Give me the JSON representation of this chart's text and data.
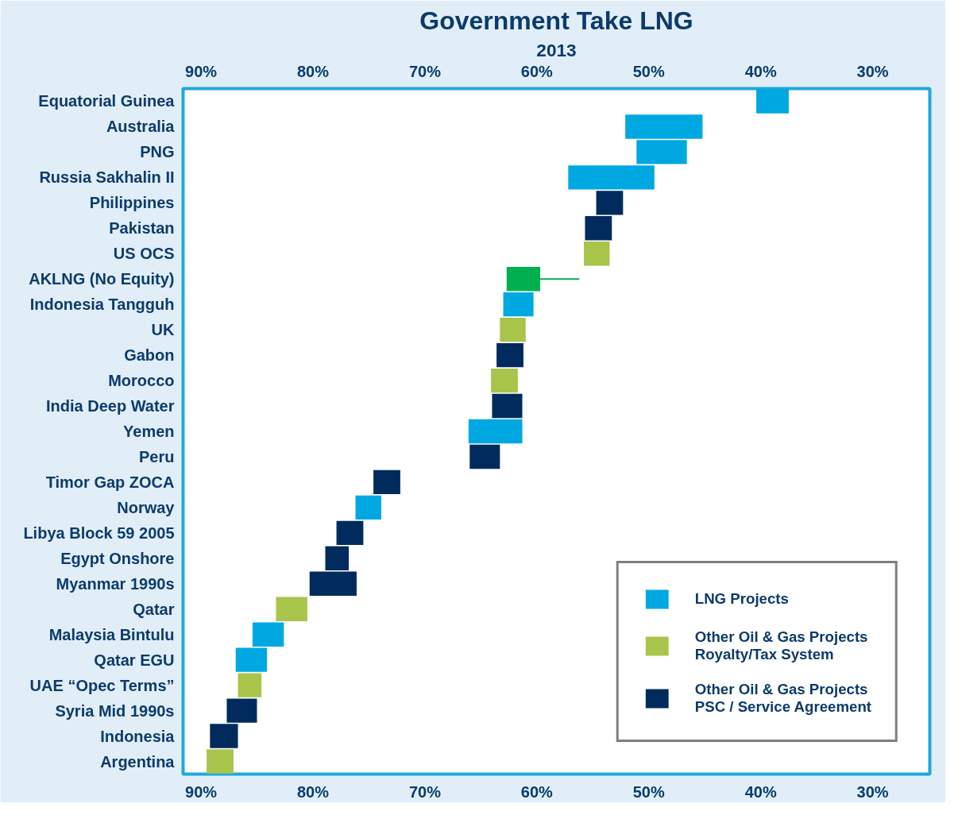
{
  "chart_data": {
    "type": "bar",
    "orientation": "horizontal",
    "title": "Government Take LNG",
    "subtitle": "2013",
    "categories": [
      "Equatorial Guinea",
      "Australia",
      "PNG",
      "Russia Sakhalin II",
      "Philippines",
      "Pakistan",
      "US OCS",
      "AKLNG (No Equity)",
      "Indonesia Tangguh",
      "UK",
      "Gabon",
      "Morocco",
      "India Deep Water",
      "Yemen",
      "Peru",
      "Timor Gap ZOCA",
      "Norway",
      "Libya Block 59 2005",
      "Egypt Onshore",
      "Myanmar 1990s",
      "Qatar",
      "Malaysia Bintulu",
      "Qatar EGU",
      "UAE “Opec Terms”",
      "Syria Mid 1990s",
      "Indonesia",
      "Argentina"
    ],
    "xlim": [
      91.6,
      24.9
    ],
    "xticks": [
      {
        "value": 90,
        "label": "90%"
      },
      {
        "value": 80,
        "label": "80%"
      },
      {
        "value": 70,
        "label": "70%"
      },
      {
        "value": 60,
        "label": "60%"
      },
      {
        "value": 50,
        "label": "50%"
      },
      {
        "value": 40,
        "label": "40%"
      },
      {
        "value": 30,
        "label": "30%"
      }
    ],
    "x2lim": [
      91.6,
      24.9
    ],
    "x2ticks": [
      {
        "value": 90,
        "label": "90%"
      },
      {
        "value": 80,
        "label": "80%"
      },
      {
        "value": 70,
        "label": "70%"
      },
      {
        "value": 60,
        "label": "60%"
      },
      {
        "value": 50,
        "label": "50%"
      },
      {
        "value": 40,
        "label": "40%"
      },
      {
        "value": 30,
        "label": "30%"
      }
    ],
    "legend": "bottom right",
    "grid": false,
    "series": [
      {
        "name": "LNG Projects",
        "color": "#00a8e1",
        "base": [
          37.5,
          45.2,
          46.6,
          49.5,
          null,
          null,
          null,
          null,
          60.3,
          null,
          null,
          null,
          null,
          61.3,
          null,
          null,
          73.9,
          null,
          null,
          null,
          null,
          82.6,
          84.1,
          null,
          null,
          null,
          null
        ],
        "values": [
          2.9,
          6.9,
          4.5,
          7.7,
          null,
          null,
          null,
          null,
          2.7,
          null,
          null,
          null,
          null,
          4.8,
          null,
          null,
          2.3,
          null,
          null,
          null,
          null,
          2.8,
          2.8,
          null,
          null,
          null,
          null
        ]
      },
      {
        "name": "Other Oil & Gas Projects\nRoyalty/Tax System",
        "color": "#a9c44a",
        "base": [
          null,
          null,
          null,
          null,
          null,
          null,
          53.5,
          null,
          null,
          61.0,
          null,
          61.7,
          null,
          null,
          null,
          null,
          null,
          null,
          null,
          null,
          80.5,
          null,
          null,
          84.6,
          null,
          null,
          87.1
        ],
        "values": [
          null,
          null,
          null,
          null,
          null,
          null,
          2.3,
          null,
          null,
          2.3,
          null,
          2.4,
          null,
          null,
          null,
          null,
          null,
          null,
          null,
          null,
          2.8,
          null,
          null,
          2.1,
          null,
          null,
          2.4
        ]
      },
      {
        "name": "Other Oil & Gas Projects\nPSC / Service Agreement",
        "color": "#002b5c",
        "base": [
          null,
          null,
          null,
          null,
          52.3,
          53.3,
          null,
          null,
          null,
          null,
          61.2,
          null,
          61.3,
          null,
          63.3,
          72.2,
          null,
          75.5,
          76.8,
          76.1,
          null,
          null,
          null,
          null,
          85.0,
          86.7,
          null
        ],
        "values": [
          null,
          null,
          null,
          null,
          2.4,
          2.4,
          null,
          null,
          null,
          null,
          2.4,
          null,
          2.7,
          null,
          2.7,
          2.4,
          null,
          2.4,
          2.1,
          4.2,
          null,
          null,
          null,
          null,
          2.7,
          2.5,
          null
        ]
      },
      {
        "color": "#00b050",
        "base": [
          null,
          null,
          null,
          null,
          null,
          null,
          null,
          59.7,
          null,
          null,
          null,
          null,
          null,
          null,
          null,
          null,
          null,
          null,
          null,
          null,
          null,
          null,
          null,
          null,
          null,
          null,
          null
        ],
        "values": [
          null,
          null,
          null,
          null,
          null,
          null,
          null,
          3.0,
          null,
          null,
          null,
          null,
          null,
          null,
          null,
          null,
          null,
          null,
          null,
          null,
          null,
          null,
          null,
          null,
          null,
          null,
          null
        ],
        "errors": [
          null,
          null,
          null,
          null,
          null,
          null,
          null,
          [
            56.2,
            59.7
          ],
          null,
          null,
          null,
          null,
          null,
          null,
          null,
          null,
          null,
          null,
          null,
          null,
          null,
          null,
          null,
          null,
          null,
          null,
          null
        ]
      }
    ]
  }
}
